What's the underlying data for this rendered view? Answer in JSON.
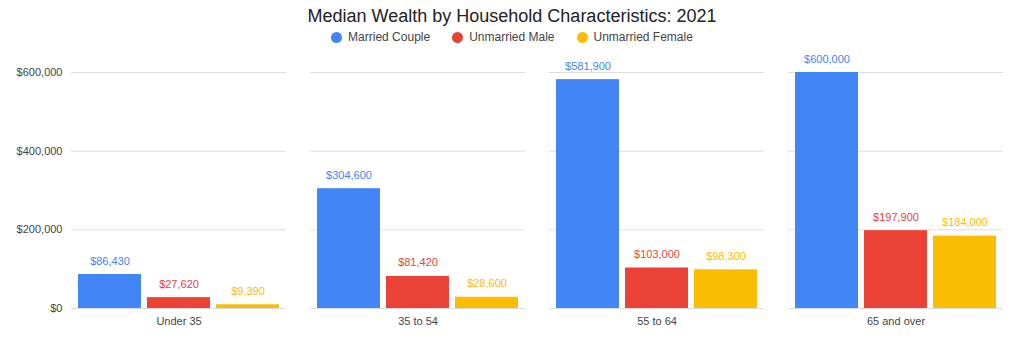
{
  "chart_data": {
    "type": "bar",
    "title": "Median Wealth by Household Characteristics: 2021",
    "categories": [
      "Under 35",
      "35 to 54",
      "55 to 64",
      "65 and over"
    ],
    "series": [
      {
        "name": "Married Couple",
        "color": "#4285f4",
        "values": [
          86430,
          304600,
          581900,
          600000
        ],
        "value_labels": [
          "$86,430",
          "$304,600",
          "$581,900",
          "$600,000"
        ]
      },
      {
        "name": "Unmarried Male",
        "color": "#ea4335",
        "values": [
          27620,
          81420,
          103000,
          197900
        ],
        "value_labels": [
          "$27,620",
          "$81,420",
          "$103,000",
          "$197,900"
        ]
      },
      {
        "name": "Unmarried Female",
        "color": "#fbbc04",
        "values": [
          9390,
          28600,
          98300,
          184000
        ],
        "value_labels": [
          "$9,390",
          "$28,600",
          "$98,300",
          "$184,000"
        ]
      }
    ],
    "ylim": [
      0,
      600000
    ],
    "yticks": [
      {
        "value": 0,
        "label": "$0"
      },
      {
        "value": 200000,
        "label": "$200,000"
      },
      {
        "value": 400000,
        "label": "$400,000"
      },
      {
        "value": 600000,
        "label": "$600,000"
      }
    ],
    "grid": true,
    "legend": "top",
    "data_labels": true
  }
}
